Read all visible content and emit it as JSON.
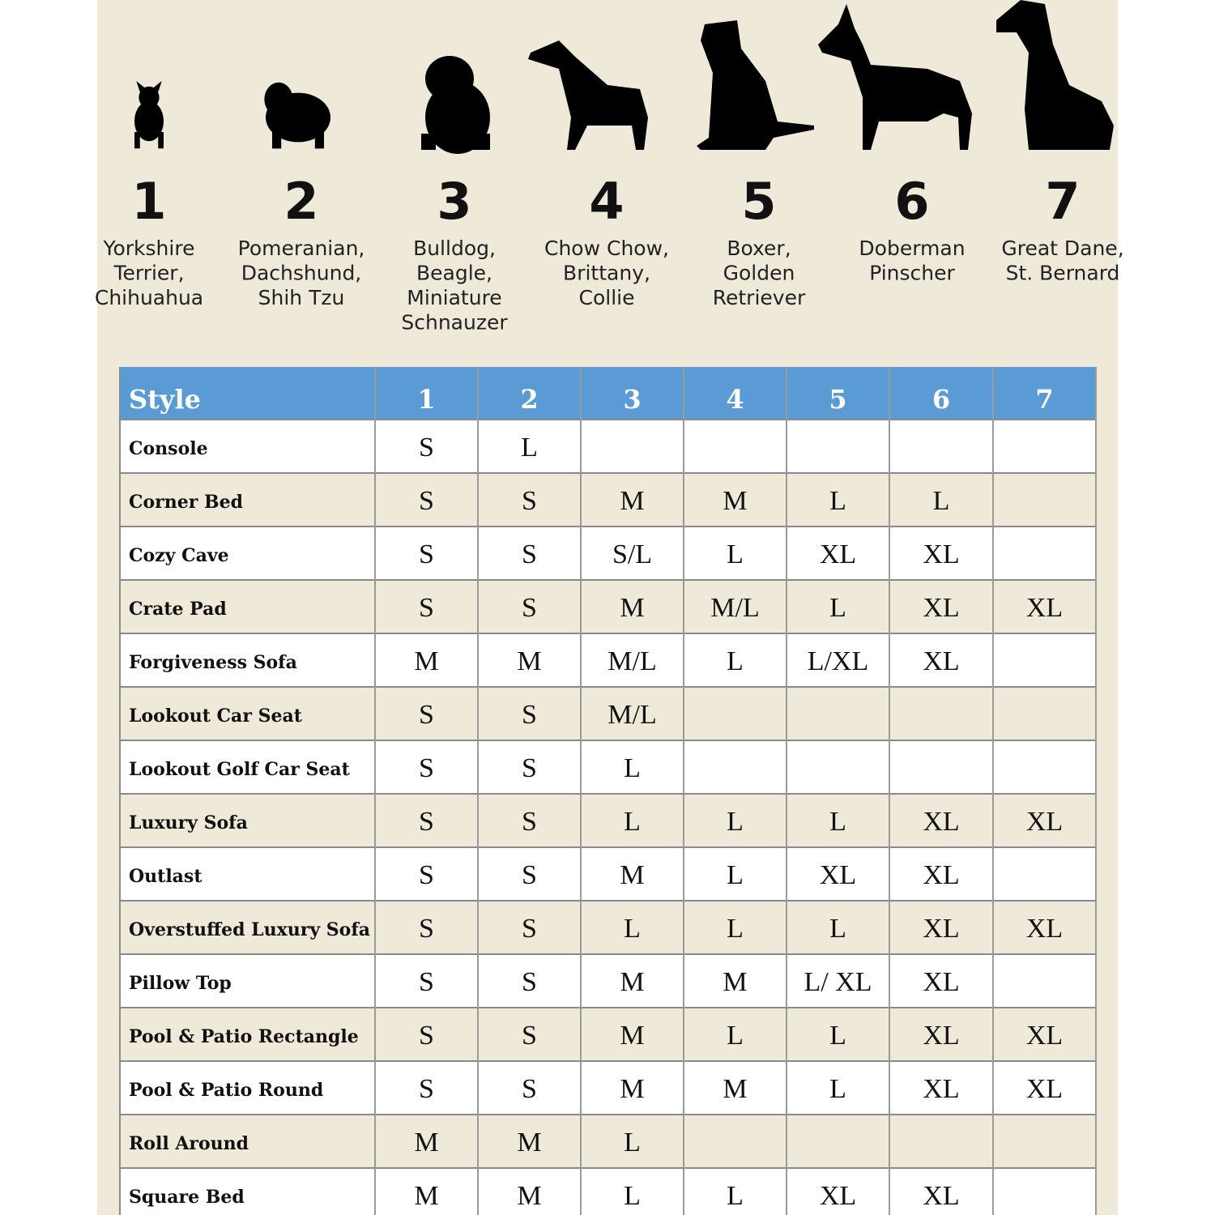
{
  "sizes": [
    {
      "number": "1",
      "breeds": [
        "Yorkshire",
        "Terrier,",
        "Chihuahua"
      ]
    },
    {
      "number": "2",
      "breeds": [
        "Pomeranian,",
        "Dachshund,",
        "Shih Tzu"
      ]
    },
    {
      "number": "3",
      "breeds": [
        "Bulldog,",
        "Beagle,",
        "Miniature",
        "Schnauzer"
      ]
    },
    {
      "number": "4",
      "breeds": [
        "Chow Chow,",
        "Brittany,",
        "Collie"
      ]
    },
    {
      "number": "5",
      "breeds": [
        "Boxer,",
        "Golden",
        "Retriever"
      ]
    },
    {
      "number": "6",
      "breeds": [
        "Doberman",
        "Pinscher"
      ]
    },
    {
      "number": "7",
      "breeds": [
        "Great Dane,",
        "St. Bernard"
      ]
    }
  ],
  "table": {
    "header": [
      "Style",
      "1",
      "2",
      "3",
      "4",
      "5",
      "6",
      "7"
    ],
    "rows": [
      [
        "Console",
        "S",
        "L",
        null,
        null,
        null,
        null,
        null
      ],
      [
        "Corner Bed",
        "S",
        "S",
        "M",
        "M",
        "L",
        "L",
        null
      ],
      [
        "Cozy Cave",
        "S",
        "S",
        "S/L",
        "L",
        "XL",
        "XL",
        null
      ],
      [
        "Crate Pad",
        "S",
        "S",
        "M",
        "M/L",
        "L",
        "XL",
        "XL"
      ],
      [
        "Forgiveness Sofa",
        "M",
        "M",
        "M/L",
        "L",
        "L/XL",
        "XL",
        null
      ],
      [
        "Lookout Car Seat",
        "S",
        "S",
        "M/L",
        null,
        null,
        null,
        null
      ],
      [
        "Lookout Golf Car Seat",
        "S",
        "S",
        "L",
        null,
        null,
        null,
        null
      ],
      [
        "Luxury Sofa",
        "S",
        "S",
        "L",
        "L",
        "L",
        "XL",
        "XL"
      ],
      [
        "Outlast",
        "S",
        "S",
        "M",
        "L",
        "XL",
        "XL",
        null
      ],
      [
        "Overstuffed Luxury Sofa",
        "S",
        "S",
        "L",
        "L",
        "L",
        "XL",
        "XL"
      ],
      [
        "Pillow Top",
        "S",
        "S",
        "M",
        "M",
        "L/ XL",
        "XL",
        null
      ],
      [
        "Pool & Patio Rectangle",
        "S",
        "S",
        "M",
        "L",
        "L",
        "XL",
        "XL"
      ],
      [
        "Pool & Patio Round",
        "S",
        "S",
        "M",
        "M",
        "L",
        "XL",
        "XL"
      ],
      [
        "Roll Around",
        "M",
        "M",
        "L",
        null,
        null,
        null,
        null
      ],
      [
        "Square Bed",
        "M",
        "M",
        "L",
        "L",
        "XL",
        "XL",
        null
      ]
    ]
  }
}
